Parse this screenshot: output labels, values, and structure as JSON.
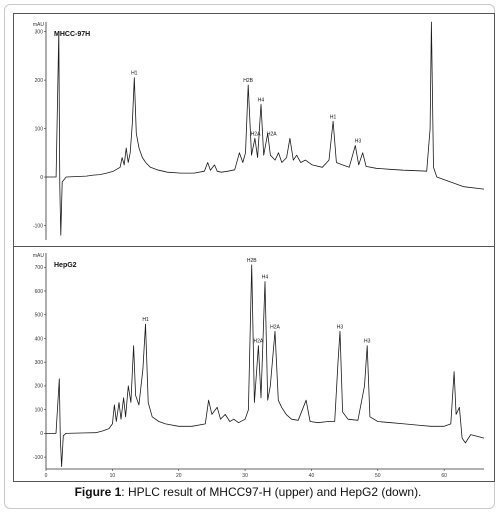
{
  "caption": {
    "prefix": "Figure 1",
    "text": ": HPLC result of MHCC97-H (upper) and HepG2 (down)."
  },
  "chart_data": [
    {
      "type": "line",
      "title": "MHCC-97H",
      "ylabel": "mAU",
      "xlim": [
        0,
        65
      ],
      "ylim": [
        -130,
        320
      ],
      "yticks": [
        -100,
        0,
        100,
        200,
        300
      ],
      "xticks": [],
      "grid": false,
      "line_color": "#1a1a1a",
      "series": [
        {
          "values": [
            [
              0,
              0
            ],
            [
              1.5,
              0
            ],
            [
              1.9,
              300
            ],
            [
              2.05,
              -20
            ],
            [
              2.2,
              -120
            ],
            [
              2.4,
              -10
            ],
            [
              3,
              0
            ],
            [
              6,
              2
            ],
            [
              7,
              4
            ],
            [
              8,
              5
            ],
            [
              9,
              8
            ],
            [
              10,
              12
            ],
            [
              11,
              20
            ],
            [
              11.3,
              40
            ],
            [
              11.6,
              25
            ],
            [
              11.9,
              60
            ],
            [
              12.2,
              30
            ],
            [
              12.5,
              50
            ],
            [
              12.8,
              110
            ],
            [
              13.1,
              205
            ],
            [
              13.4,
              90
            ],
            [
              13.8,
              60
            ],
            [
              14.3,
              40
            ],
            [
              14.8,
              30
            ],
            [
              15.5,
              20
            ],
            [
              16.5,
              15
            ],
            [
              18,
              10
            ],
            [
              20,
              8
            ],
            [
              22,
              8
            ],
            [
              23.5,
              12
            ],
            [
              24,
              30
            ],
            [
              24.4,
              14
            ],
            [
              25,
              25
            ],
            [
              25.4,
              12
            ],
            [
              26,
              10
            ],
            [
              27,
              12
            ],
            [
              28,
              15
            ],
            [
              28.7,
              50
            ],
            [
              29.2,
              30
            ],
            [
              29.6,
              50
            ],
            [
              30,
              190
            ],
            [
              30.5,
              45
            ],
            [
              31,
              80
            ],
            [
              31.4,
              40
            ],
            [
              31.9,
              150
            ],
            [
              32.3,
              45
            ],
            [
              32.9,
              90
            ],
            [
              33.3,
              45
            ],
            [
              34,
              35
            ],
            [
              34.5,
              50
            ],
            [
              35,
              30
            ],
            [
              35.7,
              40
            ],
            [
              36.2,
              80
            ],
            [
              36.7,
              35
            ],
            [
              37.2,
              45
            ],
            [
              37.8,
              30
            ],
            [
              38.5,
              35
            ],
            [
              39.5,
              25
            ],
            [
              41,
              20
            ],
            [
              42,
              35
            ],
            [
              42.6,
              115
            ],
            [
              43.1,
              30
            ],
            [
              44,
              25
            ],
            [
              45,
              20
            ],
            [
              45.9,
              65
            ],
            [
              46.4,
              25
            ],
            [
              47,
              50
            ],
            [
              47.5,
              22
            ],
            [
              49,
              18
            ],
            [
              51,
              16
            ],
            [
              53,
              14
            ],
            [
              55,
              13
            ],
            [
              56.5,
              12
            ],
            [
              57,
              100
            ],
            [
              57.2,
              320
            ],
            [
              57.5,
              20
            ],
            [
              58,
              0
            ],
            [
              60,
              -10
            ],
            [
              62,
              -20
            ],
            [
              65,
              -25
            ]
          ]
        }
      ],
      "annotations": [
        {
          "label": "H1",
          "x": 13.1,
          "y": 205
        },
        {
          "label": "H2B",
          "x": 30,
          "y": 190
        },
        {
          "label": "H4",
          "x": 31.9,
          "y": 150
        },
        {
          "label": "H2A",
          "x": 31.1,
          "y": 80
        },
        {
          "label": "H2A",
          "x": 33.5,
          "y": 80
        },
        {
          "label": "H1",
          "x": 42.6,
          "y": 115
        },
        {
          "label": "H3",
          "x": 46.3,
          "y": 65
        }
      ]
    },
    {
      "type": "line",
      "title": "HepG2",
      "ylabel": "mAU",
      "xlim": [
        0,
        66
      ],
      "ylim": [
        -150,
        760
      ],
      "yticks": [
        -100,
        0,
        100,
        200,
        300,
        400,
        500,
        600,
        700
      ],
      "xticks": [
        0,
        10,
        20,
        30,
        40,
        50,
        60
      ],
      "grid": false,
      "line_color": "#1a1a1a",
      "series": [
        {
          "values": [
            [
              0,
              0
            ],
            [
              1.5,
              0
            ],
            [
              2,
              230
            ],
            [
              2.15,
              -20
            ],
            [
              2.35,
              -140
            ],
            [
              2.6,
              -10
            ],
            [
              3,
              0
            ],
            [
              6,
              2
            ],
            [
              7.5,
              3
            ],
            [
              8.5,
              10
            ],
            [
              9.5,
              20
            ],
            [
              10,
              40
            ],
            [
              10.3,
              120
            ],
            [
              10.6,
              50
            ],
            [
              11,
              130
            ],
            [
              11.3,
              60
            ],
            [
              11.7,
              150
            ],
            [
              12,
              70
            ],
            [
              12.4,
              200
            ],
            [
              12.8,
              130
            ],
            [
              13.2,
              370
            ],
            [
              13.5,
              160
            ],
            [
              14,
              120
            ],
            [
              14.6,
              270
            ],
            [
              15,
              460
            ],
            [
              15.4,
              130
            ],
            [
              16,
              70
            ],
            [
              17,
              50
            ],
            [
              18,
              40
            ],
            [
              20,
              30
            ],
            [
              22,
              30
            ],
            [
              24,
              40
            ],
            [
              24.5,
              140
            ],
            [
              25,
              80
            ],
            [
              25.8,
              110
            ],
            [
              26.3,
              60
            ],
            [
              27,
              80
            ],
            [
              27.7,
              50
            ],
            [
              28.3,
              60
            ],
            [
              29,
              45
            ],
            [
              30,
              60
            ],
            [
              30.5,
              100
            ],
            [
              31,
              710
            ],
            [
              31.4,
              130
            ],
            [
              32,
              370
            ],
            [
              32.4,
              150
            ],
            [
              33,
              640
            ],
            [
              33.4,
              140
            ],
            [
              33.8,
              200
            ],
            [
              34.5,
              430
            ],
            [
              35,
              140
            ],
            [
              35.5,
              110
            ],
            [
              36.2,
              80
            ],
            [
              37,
              60
            ],
            [
              38,
              55
            ],
            [
              39.2,
              140
            ],
            [
              39.8,
              50
            ],
            [
              41,
              45
            ],
            [
              42.5,
              50
            ],
            [
              43.5,
              50
            ],
            [
              44,
              300
            ],
            [
              44.3,
              430
            ],
            [
              44.7,
              90
            ],
            [
              45.5,
              60
            ],
            [
              47,
              55
            ],
            [
              48,
              200
            ],
            [
              48.4,
              370
            ],
            [
              48.8,
              70
            ],
            [
              50,
              50
            ],
            [
              52,
              45
            ],
            [
              54,
              40
            ],
            [
              56,
              35
            ],
            [
              58,
              30
            ],
            [
              60,
              30
            ],
            [
              61,
              40
            ],
            [
              61.5,
              260
            ],
            [
              61.8,
              80
            ],
            [
              62.3,
              110
            ],
            [
              62.7,
              -20
            ],
            [
              63.2,
              -40
            ],
            [
              64,
              -5
            ],
            [
              66,
              -20
            ]
          ]
        }
      ],
      "annotations": [
        {
          "label": "H1",
          "x": 15,
          "y": 460
        },
        {
          "label": "H2B",
          "x": 31,
          "y": 710
        },
        {
          "label": "H4",
          "x": 33,
          "y": 640
        },
        {
          "label": "H2A",
          "x": 32,
          "y": 370
        },
        {
          "label": "H2A",
          "x": 34.5,
          "y": 430
        },
        {
          "label": "H3",
          "x": 44.3,
          "y": 430
        },
        {
          "label": "H3",
          "x": 48.4,
          "y": 370
        }
      ]
    }
  ]
}
